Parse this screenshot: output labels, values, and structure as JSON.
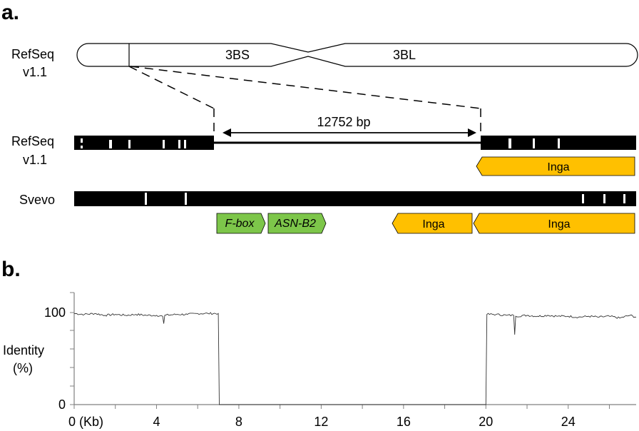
{
  "panel_a": {
    "label": "a.",
    "chromosome_track": {
      "label_line1": "RefSeq",
      "label_line2": "v1.1",
      "short_arm": "3BS",
      "long_arm": "3BL"
    },
    "refseq_track": {
      "label_line1": "RefSeq",
      "label_line2": "v1.1",
      "deletion_size": "12752 bp",
      "genes": [
        {
          "name": "Inga",
          "color": "#FFC000",
          "italic": false
        }
      ]
    },
    "svevo_track": {
      "label": "Svevo",
      "genes": [
        {
          "name": "F-box",
          "color": "#7DC64A",
          "italic": true
        },
        {
          "name": "ASN-B2",
          "color": "#7DC64A",
          "italic": true
        },
        {
          "name": "Inga",
          "color": "#FFC000",
          "italic": false
        },
        {
          "name": "Inga",
          "color": "#FFC000",
          "italic": false
        }
      ]
    }
  },
  "panel_b": {
    "label": "b.",
    "ylabel_line1": "Identity",
    "ylabel_line2": "(%)"
  },
  "chart_data": {
    "type": "line",
    "title": "",
    "xlabel": "",
    "ylabel": "Identity (%)",
    "xlim": [
      0,
      27.3
    ],
    "ylim": [
      0,
      100
    ],
    "x_tick_labels": [
      "0 (Kb)",
      "4",
      "8",
      "12",
      "16",
      "20",
      "24"
    ],
    "x_tick_values": [
      0,
      4,
      8,
      12,
      16,
      20,
      24
    ],
    "y_tick_labels": [
      "0",
      "100"
    ],
    "y_tick_values": [
      0,
      100
    ],
    "grid": false,
    "series": [
      {
        "values_description_free": true,
        "x": [
          0,
          0.5,
          1,
          1.5,
          2,
          2.5,
          3,
          3.5,
          4,
          4.3,
          4.35,
          4.4,
          5,
          5.5,
          6,
          6.5,
          7.0,
          7.05,
          7.1,
          20.0,
          20.05,
          20.5,
          21,
          21.35,
          21.4,
          21.45,
          22,
          22.5,
          23,
          23.5,
          24,
          24.5,
          25,
          25.5,
          26,
          26.5,
          27,
          27.3
        ],
        "y": [
          99,
          98,
          99,
          97,
          98,
          97,
          98,
          97,
          97,
          96,
          88,
          97,
          98,
          98,
          99,
          99,
          99,
          0,
          0,
          0,
          98,
          98,
          97,
          97,
          76,
          96,
          97,
          96,
          97,
          96,
          96,
          95,
          96,
          95,
          96,
          94,
          97,
          95
        ]
      }
    ]
  }
}
